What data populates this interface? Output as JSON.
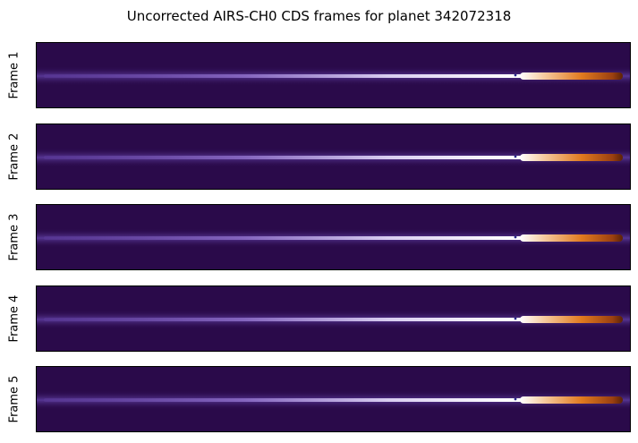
{
  "chart_data": {
    "type": "heatmap",
    "title": "Uncorrected AIRS-CH0 CDS frames for planet 342072318",
    "frames": [
      {
        "label": "Frame 1"
      },
      {
        "label": "Frame 2"
      },
      {
        "label": "Frame 3"
      },
      {
        "label": "Frame 4"
      },
      {
        "label": "Frame 5"
      }
    ],
    "colormap": "purple-white-orange",
    "colors": {
      "background": "#2a0a4a",
      "low": "#5b3a9a",
      "mid": "#ffffff",
      "high": "#e07a1f",
      "peak": "#5a2206"
    },
    "axes_visible": false
  }
}
